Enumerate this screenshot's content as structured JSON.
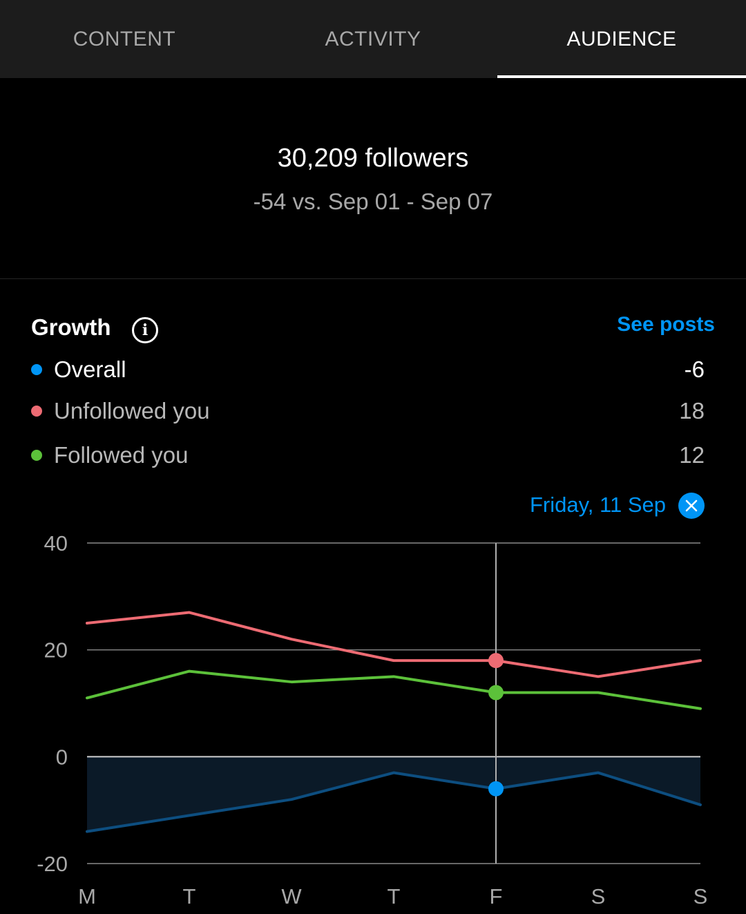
{
  "tabs": [
    {
      "label": "CONTENT",
      "active": false
    },
    {
      "label": "ACTIVITY",
      "active": false
    },
    {
      "label": "AUDIENCE",
      "active": true
    }
  ],
  "summary": {
    "followers": "30,209 followers",
    "comparison": "-54 vs. Sep 01 - Sep 07"
  },
  "growth": {
    "title": "Growth",
    "see_posts": "See posts",
    "legend": [
      {
        "label": "Overall",
        "value": "-6",
        "color": "#0095f6",
        "text_color": "#ffffff"
      },
      {
        "label": "Unfollowed you",
        "value": "18",
        "color": "#ed6b73",
        "text_color": "#b8b8b8"
      },
      {
        "label": "Followed you",
        "value": "12",
        "color": "#5cc13a",
        "text_color": "#b8b8b8"
      }
    ],
    "selected_date": "Friday, 11 Sep"
  },
  "chart_data": {
    "type": "line",
    "categories": [
      "M",
      "T",
      "W",
      "T",
      "F",
      "S",
      "S"
    ],
    "ylim": [
      -20,
      40
    ],
    "yticks": [
      40,
      20,
      0,
      -20
    ],
    "grid": true,
    "selected_index": 4,
    "series": [
      {
        "name": "Unfollowed you",
        "color": "#ed6b73",
        "values": [
          25,
          27,
          22,
          18,
          18,
          15,
          18
        ]
      },
      {
        "name": "Followed you",
        "color": "#5cc13a",
        "values": [
          11,
          16,
          14,
          15,
          12,
          12,
          9
        ]
      },
      {
        "name": "Overall",
        "color": "#0095f6",
        "values": [
          -14,
          -11,
          -8,
          -3,
          -6,
          -3,
          -9
        ]
      }
    ]
  }
}
